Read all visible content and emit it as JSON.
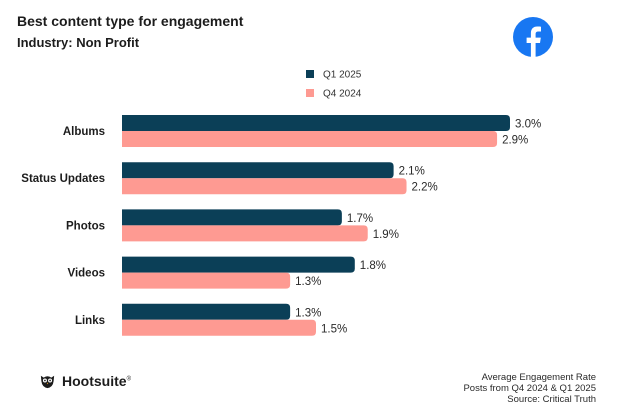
{
  "header": {
    "title": "Best content type for engagement",
    "subtitle": "Industry: Non Profit"
  },
  "logo": {
    "icon": "facebook-icon",
    "color": "#1877f2"
  },
  "brand": {
    "name": "Hootsuite",
    "mark": "®"
  },
  "footer": {
    "line1": "Average Engagement Rate",
    "line2": "Posts from Q4 2024 & Q1 2025",
    "line3": "Source: Critical Truth"
  },
  "chart_data": {
    "type": "bar",
    "orientation": "horizontal",
    "title": "Best content type for engagement",
    "subtitle": "Industry: Non Profit",
    "categories": [
      "Albums",
      "Status Updates",
      "Photos",
      "Videos",
      "Links"
    ],
    "series": [
      {
        "name": "Q1 2025",
        "color": "#0b3f57",
        "values": [
          3.0,
          2.1,
          1.7,
          1.8,
          1.3
        ]
      },
      {
        "name": "Q4 2024",
        "color": "#fe9a92",
        "values": [
          2.9,
          2.2,
          1.9,
          1.3,
          1.5
        ]
      }
    ],
    "value_suffix": "%",
    "xlim": [
      0,
      3.0
    ],
    "grid": false,
    "legend_position": "top-center"
  }
}
